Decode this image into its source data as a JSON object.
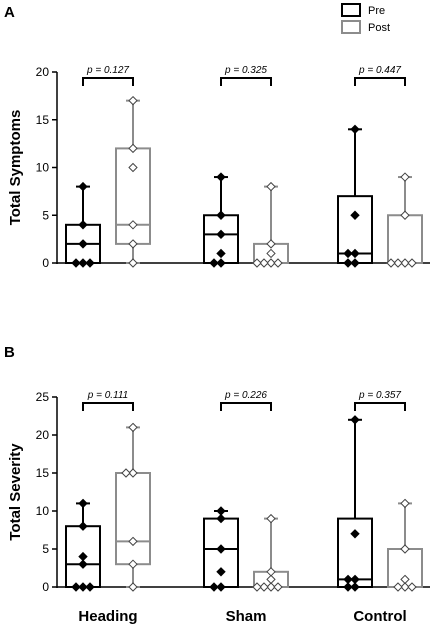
{
  "legend": {
    "pre_label": "Pre",
    "post_label": "Post"
  },
  "colors": {
    "pre": "#000000",
    "post": "#8c8c8c"
  },
  "chart_data": [
    {
      "panel": "A",
      "type": "box",
      "ylabel": "Total Symptoms",
      "ylim": [
        0,
        20
      ],
      "yticks": [
        0,
        5,
        10,
        15,
        20
      ],
      "categories": [
        "Heading",
        "Sham",
        "Control"
      ],
      "pvalues": [
        "p = 0.127",
        "p = 0.325",
        "p = 0.447"
      ],
      "series": [
        {
          "name": "Pre",
          "boxes": [
            {
              "min": 0,
              "q1": 0,
              "median": 2,
              "q3": 4,
              "max": 8,
              "points": [
                0,
                0,
                0,
                2,
                4,
                8
              ]
            },
            {
              "min": 0,
              "q1": 0,
              "median": 3,
              "q3": 5,
              "max": 9,
              "points": [
                0,
                0,
                1,
                3,
                5,
                9
              ]
            },
            {
              "min": 0,
              "q1": 0,
              "median": 1,
              "q3": 7,
              "max": 14,
              "points": [
                0,
                0,
                1,
                1,
                5,
                14
              ]
            }
          ]
        },
        {
          "name": "Post",
          "boxes": [
            {
              "min": 0,
              "q1": 2,
              "median": 4,
              "q3": 12,
              "max": 17,
              "points": [
                0,
                2,
                4,
                10,
                12,
                17
              ]
            },
            {
              "min": 0,
              "q1": 0,
              "median": 0,
              "q3": 2,
              "max": 8,
              "points": [
                0,
                0,
                0,
                0,
                1,
                2,
                8
              ]
            },
            {
              "min": 0,
              "q1": 0,
              "median": 0,
              "q3": 5,
              "max": 9,
              "points": [
                0,
                0,
                0,
                0,
                5,
                9
              ]
            }
          ]
        }
      ]
    },
    {
      "panel": "B",
      "type": "box",
      "ylabel": "Total Severity",
      "ylim": [
        0,
        25
      ],
      "yticks": [
        0,
        5,
        10,
        15,
        20,
        25
      ],
      "categories": [
        "Heading",
        "Sham",
        "Control"
      ],
      "pvalues": [
        "p = 0.111",
        "p = 0.226",
        "p = 0.357"
      ],
      "series": [
        {
          "name": "Pre",
          "boxes": [
            {
              "min": 0,
              "q1": 0,
              "median": 3,
              "q3": 8,
              "max": 11,
              "points": [
                0,
                0,
                0,
                3,
                4,
                8,
                11
              ]
            },
            {
              "min": 0,
              "q1": 0,
              "median": 5,
              "q3": 9,
              "max": 10,
              "points": [
                0,
                0,
                2,
                5,
                9,
                10
              ]
            },
            {
              "min": 0,
              "q1": 0,
              "median": 1,
              "q3": 9,
              "max": 22,
              "points": [
                0,
                0,
                1,
                1,
                7,
                22
              ]
            }
          ]
        },
        {
          "name": "Post",
          "boxes": [
            {
              "min": 0,
              "q1": 3,
              "median": 6,
              "q3": 15,
              "max": 21,
              "points": [
                0,
                3,
                6,
                15,
                15,
                21
              ]
            },
            {
              "min": 0,
              "q1": 0,
              "median": 0,
              "q3": 2,
              "max": 9,
              "points": [
                0,
                0,
                0,
                0,
                1,
                2,
                9
              ]
            },
            {
              "min": 0,
              "q1": 0,
              "median": 0,
              "q3": 5,
              "max": 11,
              "points": [
                0,
                0,
                0,
                1,
                5,
                11
              ]
            }
          ]
        }
      ]
    }
  ]
}
